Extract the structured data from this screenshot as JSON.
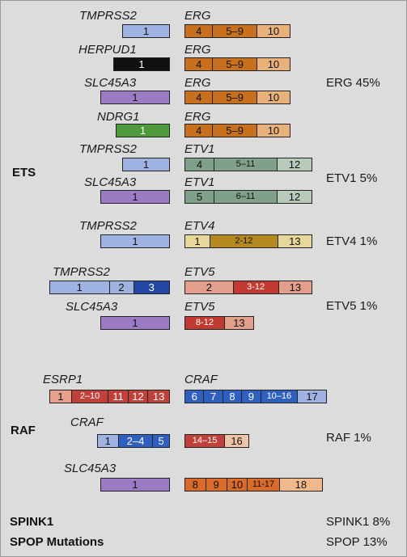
{
  "colors": {
    "tmprss2": "#9fb3e3",
    "herpud1": "#111111",
    "slc45a3": "#9b7cc4",
    "ndrg1": "#4f9a3c",
    "erg_a": "#c9701f",
    "erg_b": "#e8b07a",
    "etv1_a": "#7fa08a",
    "etv1_b": "#b6cbbb",
    "etv4_a": "#e7d79a",
    "etv4_b": "#b5891f",
    "etv5_a": "#e2a08c",
    "etv5_b": "#c03a31",
    "tmprss2_ex3": "#2348a3",
    "esrp1_a": "#e7a08a",
    "esrp1_b": "#c0403a",
    "craf_blue": "#2f5fbf",
    "craf_light": "#9fb3e3",
    "craf_red": "#c0403a",
    "craf_peach": "#efc3a8",
    "raf_orange": "#d96b2a",
    "raf_pale": "#f0b98c"
  },
  "sections": {
    "ets": "ETS",
    "raf": "RAF",
    "spink1": "SPINK1",
    "spop": "SPOP Mutations"
  },
  "percentages": {
    "erg": "ERG 45%",
    "etv1": "ETV1 5%",
    "etv4": "ETV4 1%",
    "etv5": "ETV5 1%",
    "raf": "RAF 1%",
    "spink1": "SPINK1 8%",
    "spop": "SPOP 13%"
  },
  "fusions": [
    {
      "five_gene": "TMPRSS2",
      "five_exons": [
        {
          "label": "1",
          "color": "tmprss2"
        }
      ],
      "three_gene": "ERG",
      "three_exons": [
        {
          "label": "4",
          "color": "erg_a"
        },
        {
          "label": "5–9",
          "color": "erg_a"
        },
        {
          "label": "10",
          "color": "erg_b"
        }
      ]
    },
    {
      "five_gene": "HERPUD1",
      "five_exons": [
        {
          "label": "1",
          "color": "herpud1"
        }
      ],
      "three_gene": "ERG",
      "three_exons": [
        {
          "label": "4",
          "color": "erg_a"
        },
        {
          "label": "5–9",
          "color": "erg_a"
        },
        {
          "label": "10",
          "color": "erg_b"
        }
      ]
    },
    {
      "five_gene": "SLC45A3",
      "five_exons": [
        {
          "label": "1",
          "color": "slc45a3"
        }
      ],
      "three_gene": "ERG",
      "three_exons": [
        {
          "label": "4",
          "color": "erg_a"
        },
        {
          "label": "5–9",
          "color": "erg_a"
        },
        {
          "label": "10",
          "color": "erg_b"
        }
      ]
    },
    {
      "five_gene": "NDRG1",
      "five_exons": [
        {
          "label": "1",
          "color": "ndrg1"
        }
      ],
      "three_gene": "ERG",
      "three_exons": [
        {
          "label": "4",
          "color": "erg_a"
        },
        {
          "label": "5–9",
          "color": "erg_a"
        },
        {
          "label": "10",
          "color": "erg_b"
        }
      ]
    },
    {
      "five_gene": "TMPRSS2",
      "five_exons": [
        {
          "label": "1",
          "color": "tmprss2"
        }
      ],
      "three_gene": "ETV1",
      "three_exons": [
        {
          "label": "4",
          "color": "etv1_a"
        },
        {
          "label": "5–11",
          "color": "etv1_a"
        },
        {
          "label": "12",
          "color": "etv1_b"
        }
      ]
    },
    {
      "five_gene": "SLC45A3",
      "five_exons": [
        {
          "label": "1",
          "color": "slc45a3"
        }
      ],
      "three_gene": "ETV1",
      "three_exons": [
        {
          "label": "5",
          "color": "etv1_a"
        },
        {
          "label": "6–11",
          "color": "etv1_a"
        },
        {
          "label": "12",
          "color": "etv1_b"
        }
      ]
    },
    {
      "five_gene": "TMPRSS2",
      "five_exons": [
        {
          "label": "1",
          "color": "tmprss2"
        }
      ],
      "three_gene": "ETV4",
      "three_exons": [
        {
          "label": "1",
          "color": "etv4_a"
        },
        {
          "label": "2-12",
          "color": "etv4_b"
        },
        {
          "label": "13",
          "color": "etv4_a"
        }
      ]
    },
    {
      "five_gene": "TMPRSS2",
      "five_exons": [
        {
          "label": "1",
          "color": "tmprss2"
        },
        {
          "label": "2",
          "color": "tmprss2"
        },
        {
          "label": "3",
          "color": "tmprss2_ex3"
        }
      ],
      "three_gene": "ETV5",
      "three_exons": [
        {
          "label": "2",
          "color": "etv5_a"
        },
        {
          "label": "3-12",
          "color": "etv5_b"
        },
        {
          "label": "13",
          "color": "etv5_a"
        }
      ]
    },
    {
      "five_gene": "SLC45A3",
      "five_exons": [
        {
          "label": "1",
          "color": "slc45a3"
        }
      ],
      "three_gene": "ETV5",
      "three_exons": [
        {
          "label": "8-12",
          "color": "etv5_b"
        },
        {
          "label": "13",
          "color": "etv5_a"
        }
      ]
    },
    {
      "five_gene": "ESRP1",
      "five_exons": [
        {
          "label": "1",
          "color": "esrp1_a"
        },
        {
          "label": "2–10",
          "color": "esrp1_b"
        },
        {
          "label": "11",
          "color": "esrp1_b"
        },
        {
          "label": "12",
          "color": "esrp1_b"
        },
        {
          "label": "13",
          "color": "esrp1_b"
        }
      ],
      "three_gene": "CRAF",
      "three_exons": [
        {
          "label": "6",
          "color": "craf_blue"
        },
        {
          "label": "7",
          "color": "craf_blue"
        },
        {
          "label": "8",
          "color": "craf_blue"
        },
        {
          "label": "9",
          "color": "craf_blue"
        },
        {
          "label": "10–16",
          "color": "craf_blue"
        },
        {
          "label": "17",
          "color": "craf_light"
        }
      ]
    },
    {
      "five_gene": "CRAF",
      "five_exons": [
        {
          "label": "1",
          "color": "craf_light"
        },
        {
          "label": "2–4",
          "color": "craf_blue"
        },
        {
          "label": "5",
          "color": "craf_blue"
        }
      ],
      "three_gene": "",
      "three_exons": [
        {
          "label": "14–15",
          "color": "craf_red"
        },
        {
          "label": "16",
          "color": "craf_peach"
        }
      ]
    },
    {
      "five_gene": "SLC45A3",
      "five_exons": [
        {
          "label": "1",
          "color": "slc45a3"
        }
      ],
      "three_gene": "",
      "three_exons": [
        {
          "label": "8",
          "color": "raf_orange"
        },
        {
          "label": "9",
          "color": "raf_orange"
        },
        {
          "label": "10",
          "color": "raf_orange"
        },
        {
          "label": "11-17",
          "color": "raf_orange"
        },
        {
          "label": "18",
          "color": "raf_pale"
        }
      ]
    }
  ]
}
